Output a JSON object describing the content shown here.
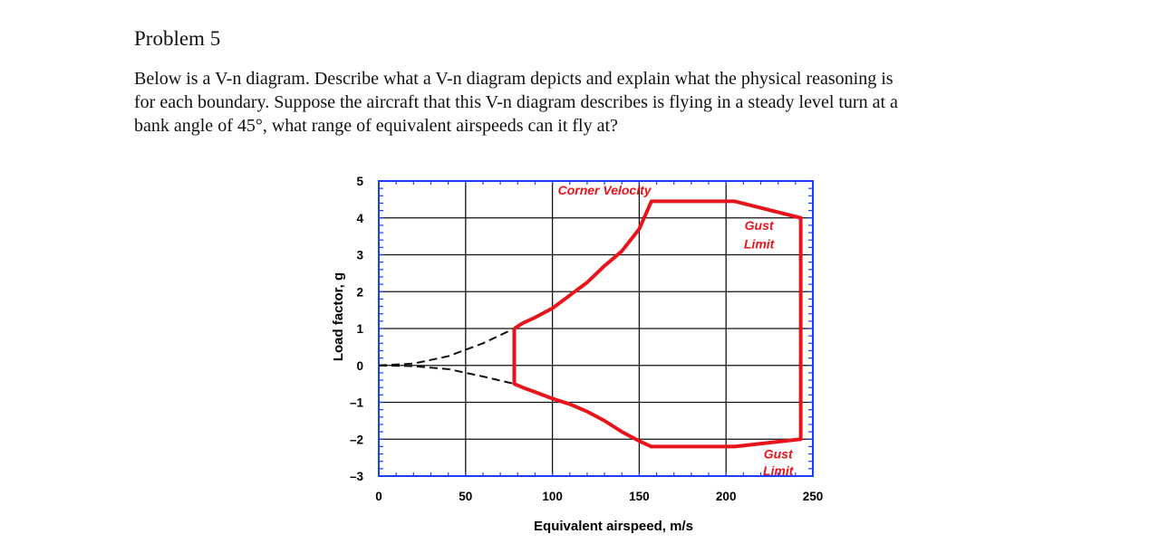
{
  "problem": {
    "title": "Problem 5",
    "line1": "Below is a V-n diagram. Describe what a V-n diagram depicts and explain what the physical reasoning is",
    "line2": "for each boundary. Suppose the aircraft that this V-n diagram describes is flying in a steady level turn at a",
    "line3": "bank angle of 45°, what range of equivalent airspeeds can it fly at?"
  },
  "chart_data": {
    "type": "line",
    "xlabel": "Equivalent airspeed, m/s",
    "ylabel": "Load factor, g",
    "xlim": [
      0,
      250
    ],
    "ylim": [
      -3,
      5
    ],
    "xticks": [
      0,
      50,
      100,
      150,
      200,
      250
    ],
    "yticks": [
      5,
      4,
      3,
      2,
      1,
      0,
      -1,
      -2,
      -3
    ],
    "xtick_labels": [
      "0",
      "50",
      "100",
      "150",
      "200",
      "250"
    ],
    "ytick_labels": [
      "5",
      "4",
      "3",
      "2",
      "1",
      "0",
      "–1",
      "–2",
      "–3"
    ],
    "grid": true,
    "colors": {
      "envelope": "#e8141c",
      "stall_curves": "#111111",
      "frame": "#1a3cff",
      "grid": "#111111"
    },
    "annotations": [
      {
        "text": "Corner Velocity",
        "x": 130,
        "y": 4.75
      },
      {
        "text": "Gust",
        "x": 219,
        "y": 3.8
      },
      {
        "text": "Limit",
        "x": 219,
        "y": 3.3
      },
      {
        "text": "Gust",
        "x": 230,
        "y": -2.4
      },
      {
        "text": "Limit",
        "x": 230,
        "y": -2.85
      }
    ],
    "envelope": {
      "x": [
        78,
        83,
        90,
        100,
        110,
        120,
        130,
        140,
        150,
        157,
        205,
        243,
        243,
        205,
        157,
        150,
        140,
        130,
        120,
        110,
        100,
        90,
        83,
        78,
        78
      ],
      "y": [
        1.0,
        1.15,
        1.3,
        1.55,
        1.9,
        2.25,
        2.7,
        3.1,
        3.7,
        4.45,
        4.45,
        4.0,
        -2.0,
        -2.2,
        -2.2,
        -2.05,
        -1.8,
        -1.5,
        -1.25,
        -1.05,
        -0.9,
        -0.72,
        -0.6,
        -0.5,
        1.0
      ]
    },
    "stall_curves": [
      {
        "x": [
          0,
          20,
          40,
          60,
          78
        ],
        "y": [
          0,
          0.05,
          0.25,
          0.6,
          1.0
        ]
      },
      {
        "x": [
          0,
          20,
          40,
          60,
          78
        ],
        "y": [
          0,
          -0.02,
          -0.1,
          -0.3,
          -0.5
        ]
      }
    ]
  }
}
